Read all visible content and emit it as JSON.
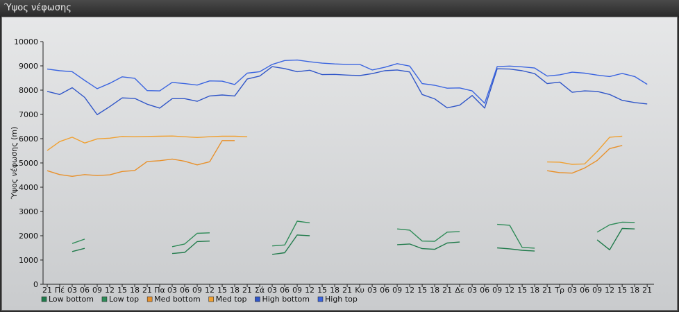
{
  "window": {
    "title": "Ύψος νέφωσης"
  },
  "chart_data": {
    "type": "line",
    "ylabel": "Ύψος νέφωσης (m)",
    "ylim": [
      0,
      10000
    ],
    "yticks": [
      0,
      1000,
      2000,
      3000,
      4000,
      5000,
      6000,
      7000,
      8000,
      9000,
      10000
    ],
    "grid": false,
    "legend_placement": "bottom-left",
    "x": [
      "21",
      "Πέ",
      "03",
      "06",
      "09",
      "12",
      "15",
      "18",
      "21",
      "Πα",
      "03",
      "06",
      "09",
      "12",
      "15",
      "18",
      "21",
      "Σά",
      "03",
      "06",
      "09",
      "12",
      "15",
      "18",
      "21",
      "Κυ",
      "03",
      "06",
      "09",
      "12",
      "15",
      "18",
      "21",
      "Δε",
      "03",
      "06",
      "09",
      "12",
      "15",
      "18",
      "21",
      "Τρ",
      "03",
      "06",
      "09",
      "12",
      "15",
      "18",
      "21"
    ],
    "series": [
      {
        "name": "Low bottom",
        "color": "#1f7a4a",
        "values": [
          null,
          null,
          1350,
          1480,
          null,
          null,
          null,
          null,
          null,
          null,
          1270,
          1310,
          1760,
          1780,
          null,
          null,
          null,
          null,
          1230,
          1300,
          2030,
          2000,
          null,
          null,
          null,
          null,
          null,
          null,
          1630,
          1660,
          1470,
          1440,
          1700,
          1740,
          null,
          null,
          1500,
          1460,
          1400,
          1370,
          null,
          null,
          null,
          null,
          1830,
          1420,
          2300,
          2280,
          null
        ]
      },
      {
        "name": "Low top",
        "color": "#2e8b57",
        "values": [
          null,
          null,
          1680,
          1860,
          null,
          null,
          null,
          null,
          null,
          null,
          1550,
          1660,
          2100,
          2120,
          null,
          null,
          null,
          null,
          1580,
          1620,
          2600,
          2530,
          null,
          null,
          null,
          null,
          null,
          null,
          2280,
          2230,
          1780,
          1770,
          2150,
          2170,
          null,
          null,
          2470,
          2430,
          1520,
          1490,
          null,
          null,
          null,
          null,
          2150,
          2450,
          2560,
          2550,
          null
        ]
      },
      {
        "name": "Med bottom",
        "color": "#e8902a",
        "values": [
          4680,
          4520,
          4450,
          4520,
          4480,
          4510,
          4650,
          4690,
          5060,
          5090,
          5160,
          5070,
          4920,
          5050,
          5920,
          5920,
          null,
          null,
          null,
          null,
          null,
          null,
          null,
          null,
          null,
          null,
          null,
          null,
          null,
          null,
          null,
          null,
          null,
          null,
          null,
          null,
          null,
          null,
          null,
          null,
          4680,
          4600,
          4580,
          4790,
          5100,
          5590,
          5720,
          null,
          null
        ]
      },
      {
        "name": "Med top",
        "color": "#f0a030",
        "values": [
          5510,
          5880,
          6060,
          5820,
          5990,
          6020,
          6090,
          6080,
          6090,
          6100,
          6110,
          6080,
          6050,
          6080,
          6100,
          6100,
          6080,
          null,
          null,
          null,
          null,
          null,
          null,
          null,
          null,
          null,
          null,
          null,
          null,
          null,
          null,
          null,
          null,
          null,
          null,
          null,
          null,
          null,
          null,
          null,
          5040,
          5030,
          4940,
          4960,
          5470,
          6060,
          6100,
          null,
          null
        ]
      },
      {
        "name": "High bottom",
        "color": "#2f55c8",
        "values": [
          7950,
          7820,
          8100,
          7700,
          6990,
          7320,
          7680,
          7660,
          7420,
          7260,
          7650,
          7650,
          7540,
          7760,
          7800,
          7760,
          8460,
          8580,
          8970,
          8890,
          8760,
          8820,
          8640,
          8650,
          8620,
          8600,
          8680,
          8800,
          8830,
          8750,
          7820,
          7640,
          7270,
          7380,
          7780,
          7260,
          8880,
          8870,
          8800,
          8680,
          8270,
          8330,
          7910,
          7970,
          7950,
          7820,
          7580,
          7490,
          7430
        ]
      },
      {
        "name": "High top",
        "color": "#3a64e0",
        "values": [
          8870,
          8800,
          8760,
          8400,
          8060,
          8280,
          8550,
          8490,
          7980,
          7970,
          8320,
          8270,
          8210,
          8380,
          8370,
          8230,
          8700,
          8760,
          9060,
          9220,
          9240,
          9170,
          9110,
          9080,
          9060,
          9060,
          8830,
          8940,
          9090,
          8990,
          8270,
          8200,
          8080,
          8090,
          7970,
          7460,
          8970,
          8990,
          8960,
          8910,
          8580,
          8630,
          8740,
          8700,
          8620,
          8560,
          8690,
          8560,
          8240
        ]
      }
    ]
  }
}
